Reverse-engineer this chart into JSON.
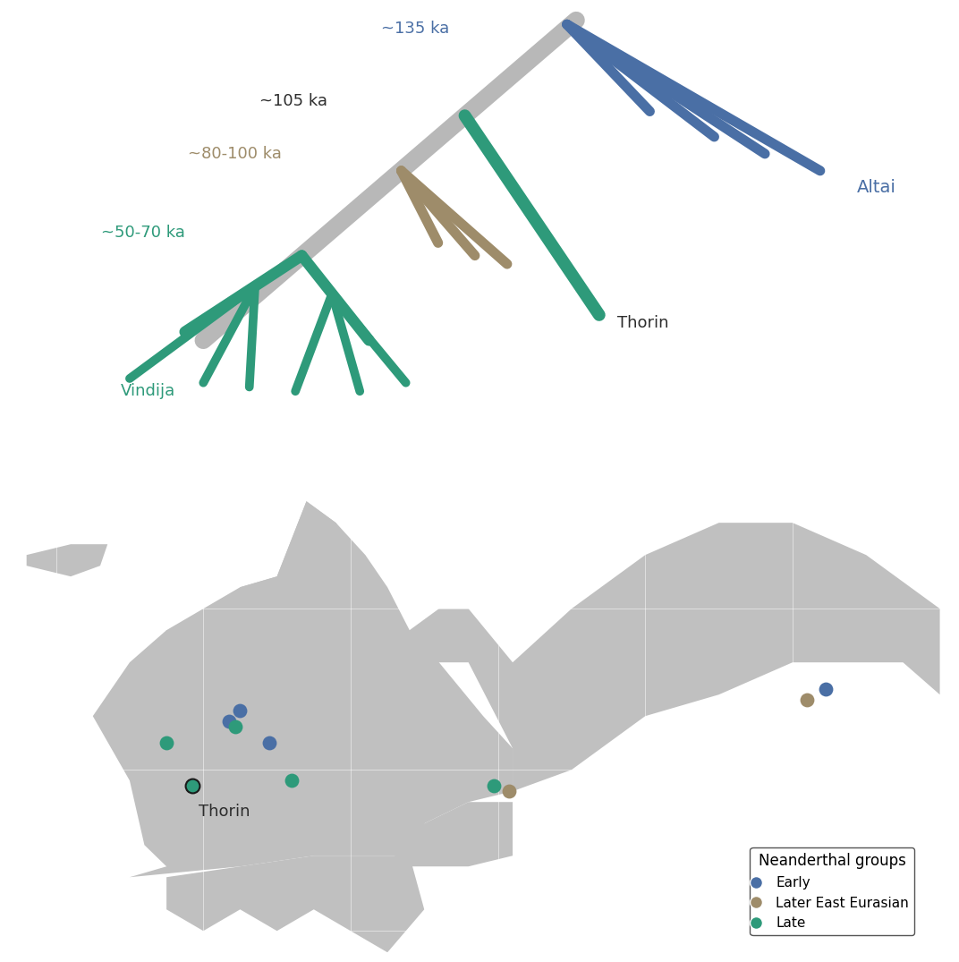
{
  "background_color": "#ffffff",
  "tree_colors": {
    "gray_trunk": "#b8b8b8",
    "blue_altai": "#4a6fa5",
    "tan_east": "#9e8c6a",
    "teal_late": "#2e9a7a"
  },
  "tree_labels": {
    "135ka": "~135 ka",
    "105ka": "~105 ka",
    "8090ka": "~80-100 ka",
    "5070ka": "~50-70 ka",
    "altai": "Altai",
    "thorin": "Thorin",
    "vindija": "Vindija"
  },
  "tree_label_colors": {
    "135ka": "#4a6fa5",
    "105ka": "#2d2d2d",
    "8090ka": "#9e8c6a",
    "5070ka": "#2e9a7a",
    "altai": "#4a6fa5",
    "thorin": "#2d2d2d",
    "vindija": "#2e9a7a"
  },
  "dot_groups": {
    "Early": {
      "color": "#4a6fa5",
      "size": 130
    },
    "Later East Eurasian": {
      "color": "#9e8c6a",
      "size": 130
    },
    "Late": {
      "color": "#2e9a7a",
      "size": 130
    }
  },
  "locations": [
    {
      "lon": 5.0,
      "lat": 50.5,
      "group": "Early"
    },
    {
      "lon": 3.5,
      "lat": 49.5,
      "group": "Early"
    },
    {
      "lon": 9.0,
      "lat": 47.5,
      "group": "Early"
    },
    {
      "lon": -1.5,
      "lat": 43.5,
      "group": "Late",
      "label": "Thorin",
      "outline": true
    },
    {
      "lon": 4.3,
      "lat": 49.0,
      "group": "Late"
    },
    {
      "lon": -5.0,
      "lat": 47.5,
      "group": "Late"
    },
    {
      "lon": 12.0,
      "lat": 44.0,
      "group": "Late"
    },
    {
      "lon": 39.5,
      "lat": 43.5,
      "group": "Late"
    },
    {
      "lon": 41.5,
      "lat": 43.0,
      "group": "Later East Eurasian"
    },
    {
      "lon": 84.5,
      "lat": 52.5,
      "group": "Early"
    },
    {
      "lon": 82.0,
      "lat": 51.5,
      "group": "Later East Eurasian"
    }
  ],
  "legend_title": "Neanderthal groups",
  "legend_entries": [
    "Early",
    "Later East Eurasian",
    "Late"
  ],
  "map_extent": [
    -25,
    100,
    28,
    75
  ],
  "ocean_color": "#a0a0a0",
  "land_color": "#c0c0c0"
}
